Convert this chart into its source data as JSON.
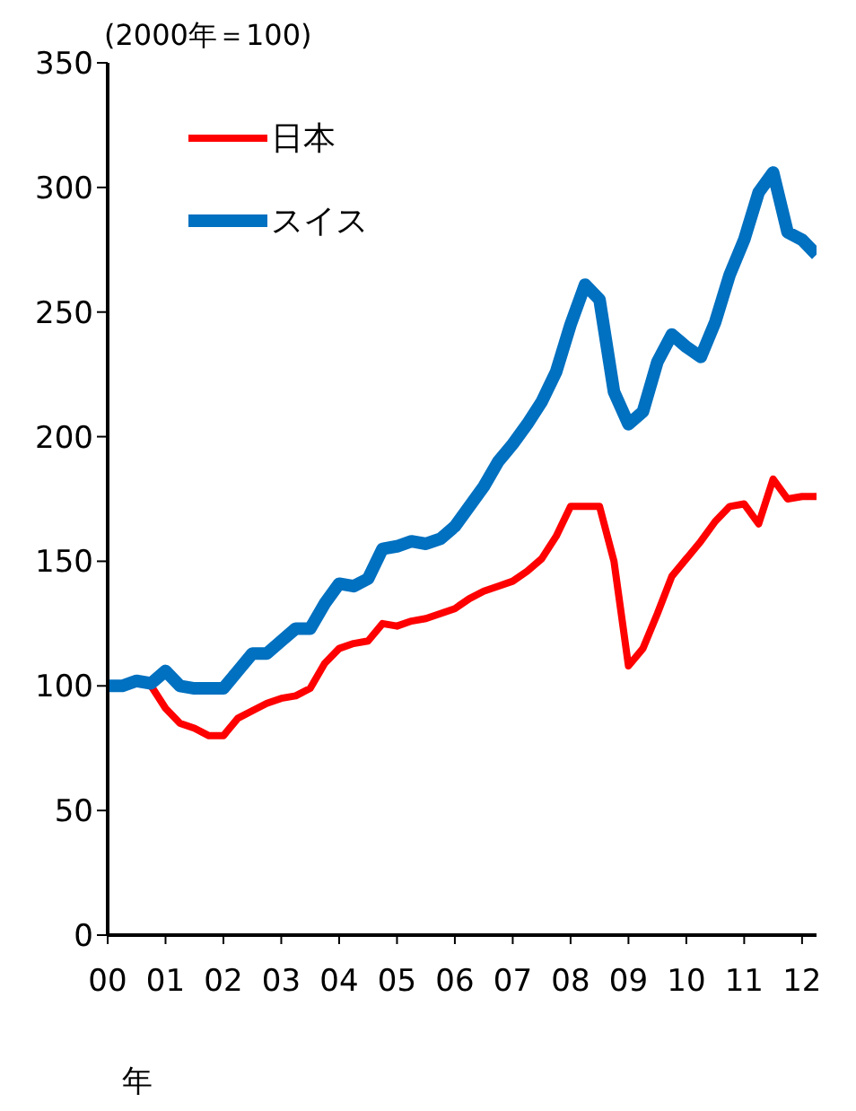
{
  "chart_data": {
    "type": "line",
    "ylabel": "(2000年＝100)",
    "xlabel": "年",
    "x": [
      0,
      0.25,
      0.5,
      0.75,
      1,
      1.25,
      1.5,
      1.75,
      2,
      2.25,
      2.5,
      2.75,
      3,
      3.25,
      3.5,
      3.75,
      4,
      4.25,
      4.5,
      4.75,
      5,
      5.25,
      5.5,
      5.75,
      6,
      6.25,
      6.5,
      6.75,
      7,
      7.25,
      7.5,
      7.75,
      8,
      8.25,
      8.5,
      8.75,
      9,
      9.25,
      9.5,
      9.75,
      10,
      10.25,
      10.5,
      10.75,
      11,
      11.25,
      11.5,
      11.75,
      12,
      12.25
    ],
    "series": [
      {
        "name": "日本",
        "color": "#ff0000",
        "values": [
          null,
          null,
          null,
          100,
          91,
          85,
          83,
          80,
          80,
          87,
          90,
          93,
          95,
          96,
          99,
          109,
          115,
          117,
          118,
          125,
          124,
          126,
          127,
          129,
          131,
          135,
          138,
          140,
          142,
          146,
          151,
          160,
          172,
          172,
          172,
          150,
          108,
          115,
          129,
          144,
          151,
          158,
          166,
          172,
          173,
          165,
          183,
          175,
          176,
          176
        ]
      },
      {
        "name": "スイス",
        "color": "#0070c0",
        "values": [
          100,
          100,
          102,
          101,
          106,
          100,
          99,
          99,
          99,
          106,
          113,
          113,
          118,
          123,
          123,
          133,
          141,
          140,
          143,
          155,
          156,
          158,
          157,
          159,
          164,
          172,
          180,
          190,
          197,
          205,
          214,
          226,
          245,
          261,
          255,
          218,
          205,
          210,
          230,
          241,
          236,
          232,
          246,
          265,
          279,
          298,
          306,
          282,
          279,
          273
        ]
      }
    ],
    "xlim": [
      0,
      12.25
    ],
    "xticks": [
      {
        "value": 0,
        "label": "00"
      },
      {
        "value": 1,
        "label": "01"
      },
      {
        "value": 2,
        "label": "02"
      },
      {
        "value": 3,
        "label": "03"
      },
      {
        "value": 4,
        "label": "04"
      },
      {
        "value": 5,
        "label": "05"
      },
      {
        "value": 6,
        "label": "06"
      },
      {
        "value": 7,
        "label": "07"
      },
      {
        "value": 8,
        "label": "08"
      },
      {
        "value": 9,
        "label": "09"
      },
      {
        "value": 10,
        "label": "10"
      },
      {
        "value": 11,
        "label": "11"
      },
      {
        "value": 12,
        "label": "12"
      }
    ],
    "ylim": [
      0,
      350
    ],
    "yticks": [
      0,
      50,
      100,
      150,
      200,
      250,
      300,
      350
    ],
    "grid": false,
    "legend": "top left",
    "marker": "none",
    "line_style": "solid"
  }
}
